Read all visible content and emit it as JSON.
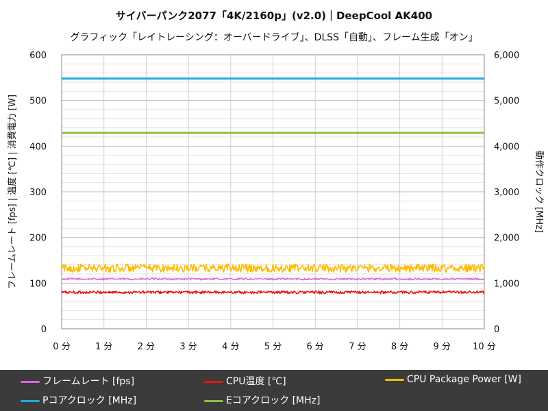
{
  "title": "サイバーパンク2077「4K/2160p」(v2.0)｜DeepCool AK400",
  "subtitle": "グラフィック「レイトレーシング：オーバードライブ」、DLSS「自動」、フレーム生成「オン」",
  "chart_data": {
    "type": "line",
    "ylabel_left": "フレームレート [fps] | 温度 [℃] | 消費電力 [W]",
    "ylabel_right": "動作クロック [MHz]",
    "xlim": [
      0,
      10
    ],
    "ylim_left": [
      0,
      600
    ],
    "ylim_right": [
      0,
      6000
    ],
    "x_ticks": [
      0,
      1,
      2,
      3,
      4,
      5,
      6,
      7,
      8,
      9,
      10
    ],
    "x_tick_labels": [
      "0 分",
      "1 分",
      "2 分",
      "3 分",
      "4 分",
      "5 分",
      "6 分",
      "7 分",
      "8 分",
      "9 分",
      "10 分"
    ],
    "y_ticks_left": [
      0,
      100,
      200,
      300,
      400,
      500,
      600
    ],
    "y_tick_labels_left": [
      "0",
      "100",
      "200",
      "300",
      "400",
      "500",
      "600"
    ],
    "y_ticks_right": [
      0,
      1000,
      2000,
      3000,
      4000,
      5000,
      6000
    ],
    "y_tick_labels_right": [
      "0",
      "1,000",
      "2,000",
      "3,000",
      "4,000",
      "5,000",
      "6,000"
    ],
    "grid": true,
    "series": [
      {
        "name": "フレームレート [fps]",
        "axis": "left",
        "color": "#e066e0",
        "mean": 109,
        "jitter": 2,
        "x": [
          0,
          10
        ]
      },
      {
        "name": "CPU温度 [℃]",
        "axis": "left",
        "color": "#ee1111",
        "mean": 80,
        "jitter": 3,
        "x": [
          0,
          10
        ]
      },
      {
        "name": "CPU Package  Power [W]",
        "axis": "left",
        "color": "#ffbb00",
        "mean": 133,
        "jitter": 9,
        "x": [
          0,
          10
        ]
      },
      {
        "name": "Pコアクロック [MHz]",
        "axis": "right",
        "color": "#22aadd",
        "mean": 5480,
        "jitter": 0,
        "x": [
          0,
          10
        ]
      },
      {
        "name": "Eコアクロック [MHz]",
        "axis": "right",
        "color": "#88c040",
        "mean": 4290,
        "jitter": 0,
        "x": [
          0,
          10
        ]
      }
    ]
  }
}
